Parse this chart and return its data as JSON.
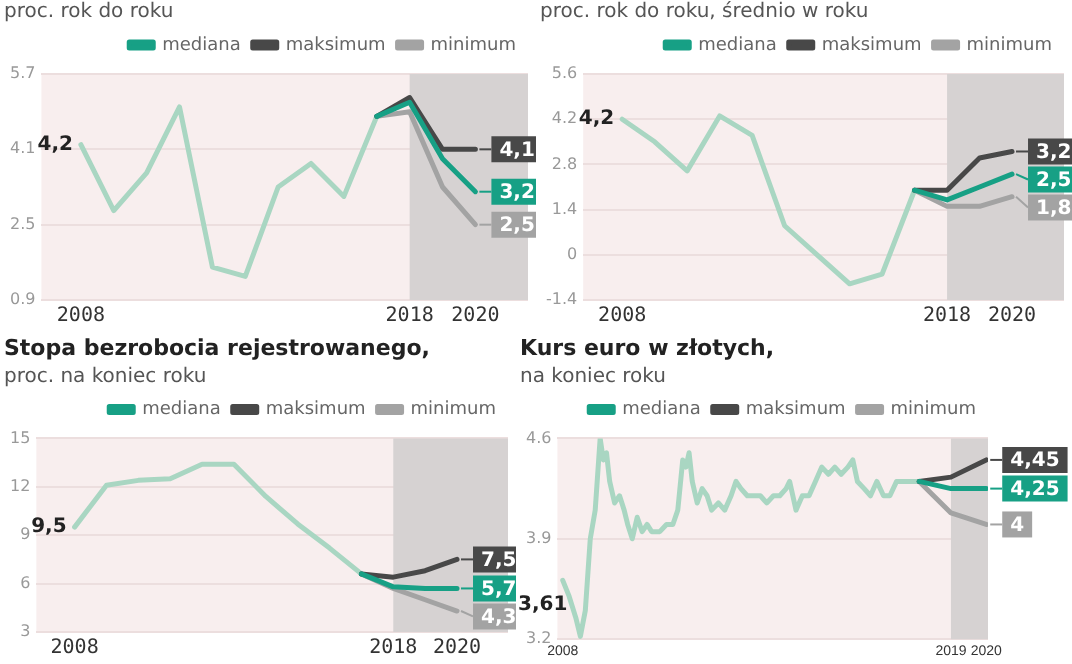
{
  "chart_data": [
    {
      "type": "line",
      "subtitle": "proc. rok do roku",
      "x": [
        2008,
        2009,
        2010,
        2011,
        2012,
        2013,
        2014,
        2015,
        2016,
        2017
      ],
      "xlim": [
        2006.8,
        2021.6
      ],
      "xticks": [
        2008,
        2018,
        2020
      ],
      "ylim": [
        0.9,
        5.7
      ],
      "yticks": [
        0.9,
        2.5,
        4.1,
        5.7
      ],
      "grid": "y",
      "legend": "top right",
      "bands": [
        {
          "axis": "x",
          "from": 2018,
          "to": 2021.6,
          "color": "#d6d2d2"
        }
      ],
      "series": [
        {
          "color": "#a9d6c2",
          "values": [
            4.2,
            2.8,
            3.6,
            5.0,
            1.6,
            1.4,
            3.3,
            3.8,
            3.1,
            4.8
          ],
          "value_labels": [
            "4,2",
            null,
            null,
            null,
            null,
            null,
            null,
            null,
            null,
            null
          ]
        },
        {
          "name": "mediana",
          "color": "#17a085",
          "x": [
            2017,
            2018,
            2019,
            2020
          ],
          "values": [
            4.8,
            5.1,
            3.9,
            3.2
          ],
          "value_labels": [
            null,
            null,
            null,
            "3,2"
          ]
        },
        {
          "name": "maksimum",
          "color": "#484848",
          "x": [
            2017,
            2018,
            2019,
            2020
          ],
          "values": [
            4.8,
            5.2,
            4.1,
            4.1
          ],
          "value_labels": [
            null,
            null,
            null,
            "4,1"
          ]
        },
        {
          "name": "minimum",
          "color": "#a3a3a3",
          "x": [
            2017,
            2018,
            2019,
            2020
          ],
          "values": [
            4.8,
            4.9,
            3.3,
            2.5
          ],
          "value_labels": [
            null,
            null,
            null,
            "2,5"
          ]
        }
      ]
    },
    {
      "type": "line",
      "subtitle": "proc. rok do roku, średnio w roku",
      "x": [
        2008,
        2009,
        2010,
        2011,
        2012,
        2013,
        2014,
        2015,
        2016,
        2017
      ],
      "xlim": [
        2006.8,
        2021.6
      ],
      "xticks": [
        2008,
        2018,
        2020
      ],
      "ylim": [
        -1.4,
        5.6
      ],
      "yticks": [
        -1.4,
        0,
        1.4,
        2.8,
        4.2,
        5.6
      ],
      "grid": "y",
      "legend": "top right",
      "bands": [
        {
          "axis": "x",
          "from": 2018,
          "to": 2021.6,
          "color": "#d6d2d2"
        }
      ],
      "series": [
        {
          "color": "#a9d6c2",
          "values": [
            4.2,
            3.5,
            2.6,
            4.3,
            3.7,
            0.9,
            0.0,
            -0.9,
            -0.6,
            2.0
          ],
          "value_labels": [
            "4,2",
            null,
            null,
            null,
            null,
            null,
            null,
            null,
            null,
            null
          ]
        },
        {
          "name": "mediana",
          "color": "#17a085",
          "x": [
            2017,
            2018,
            2019,
            2020
          ],
          "values": [
            2.0,
            1.7,
            2.1,
            2.5
          ],
          "value_labels": [
            null,
            null,
            null,
            "2,5"
          ]
        },
        {
          "name": "maksimum",
          "color": "#484848",
          "x": [
            2017,
            2018,
            2019,
            2020
          ],
          "values": [
            2.0,
            2.0,
            3.0,
            3.2
          ],
          "value_labels": [
            null,
            null,
            null,
            "3,2"
          ]
        },
        {
          "name": "minimum",
          "color": "#a3a3a3",
          "x": [
            2017,
            2018,
            2019,
            2020
          ],
          "values": [
            2.0,
            1.5,
            1.5,
            1.8
          ],
          "value_labels": [
            null,
            null,
            null,
            "1,8"
          ]
        }
      ]
    },
    {
      "type": "line",
      "title": "Stopa bezrobocia rejestrowanego,",
      "subtitle": "proc. na koniec roku",
      "x": [
        2008,
        2009,
        2010,
        2011,
        2012,
        2013,
        2014,
        2015,
        2016,
        2017
      ],
      "xlim": [
        2006.8,
        2021.6
      ],
      "xticks": [
        2008,
        2018,
        2020
      ],
      "ylim": [
        3,
        15
      ],
      "yticks": [
        3,
        6,
        9,
        12,
        15
      ],
      "grid": "y",
      "legend": "top right",
      "bands": [
        {
          "axis": "x",
          "from": 2018,
          "to": 2021.6,
          "color": "#d6d2d2"
        }
      ],
      "series": [
        {
          "color": "#a9d6c2",
          "values": [
            9.5,
            12.1,
            12.4,
            12.5,
            13.4,
            13.4,
            11.4,
            9.7,
            8.2,
            6.6
          ],
          "value_labels": [
            "9,5",
            null,
            null,
            null,
            null,
            null,
            null,
            null,
            null,
            null
          ]
        },
        {
          "name": "mediana",
          "color": "#17a085",
          "x": [
            2017,
            2018,
            2019,
            2020
          ],
          "values": [
            6.6,
            5.8,
            5.7,
            5.7
          ],
          "value_labels": [
            null,
            null,
            null,
            "5,7"
          ]
        },
        {
          "name": "maksimum",
          "color": "#484848",
          "x": [
            2017,
            2018,
            2019,
            2020
          ],
          "values": [
            6.6,
            6.4,
            6.8,
            7.5
          ],
          "value_labels": [
            null,
            null,
            null,
            "7,5"
          ]
        },
        {
          "name": "minimum",
          "color": "#a3a3a3",
          "x": [
            2017,
            2018,
            2019,
            2020
          ],
          "values": [
            6.6,
            5.7,
            5.0,
            4.3
          ],
          "value_labels": [
            null,
            null,
            null,
            "4,3"
          ]
        }
      ]
    },
    {
      "type": "line",
      "title": "Kurs euro w złotych,",
      "subtitle": "na koniec roku",
      "x": [
        2008.0,
        2008.18,
        2008.37,
        2008.5,
        2008.64,
        2008.78,
        2008.92,
        2009.06,
        2009.15,
        2009.24,
        2009.33,
        2009.47,
        2009.61,
        2009.74,
        2009.84,
        2009.97,
        2010.11,
        2010.25,
        2010.39,
        2010.52,
        2010.66,
        2010.75,
        2010.94,
        2011.12,
        2011.26,
        2011.4,
        2011.49,
        2011.58,
        2011.67,
        2011.81,
        2011.95,
        2012.09,
        2012.22,
        2012.41,
        2012.59,
        2012.77,
        2012.91,
        2013.05,
        2013.23,
        2013.42,
        2013.6,
        2013.78,
        2013.97,
        2014.15,
        2014.33,
        2014.43,
        2014.61,
        2014.79,
        2014.98,
        2015.16,
        2015.34,
        2015.53,
        2015.71,
        2015.89,
        2016.08,
        2016.22,
        2016.35,
        2016.54,
        2016.72,
        2016.9,
        2017.09,
        2017.27,
        2017.46,
        2017.64,
        2017.82,
        2017.96,
        2018.1
      ],
      "xlim": [
        2007.85,
        2020.05
      ],
      "xticks": [
        2008,
        2019,
        2020
      ],
      "ylim": [
        3.2,
        4.6
      ],
      "yticks": [
        3.2,
        3.9,
        4.6
      ],
      "grid": "y",
      "legend": "top right",
      "bands": [
        {
          "axis": "x",
          "from": 2019,
          "to": 2020.05,
          "color": "#d6d2d2"
        }
      ],
      "series": [
        {
          "color": "#a9d6c2",
          "values": [
            3.61,
            3.5,
            3.35,
            3.22,
            3.4,
            3.9,
            4.1,
            4.6,
            4.45,
            4.5,
            4.3,
            4.15,
            4.2,
            4.1,
            4.0,
            3.9,
            4.05,
            3.95,
            4.0,
            3.95,
            3.95,
            3.95,
            4.0,
            4.0,
            4.1,
            4.45,
            4.4,
            4.5,
            4.3,
            4.15,
            4.25,
            4.2,
            4.1,
            4.15,
            4.1,
            4.2,
            4.3,
            4.25,
            4.2,
            4.2,
            4.2,
            4.15,
            4.2,
            4.2,
            4.25,
            4.3,
            4.1,
            4.2,
            4.2,
            4.3,
            4.4,
            4.35,
            4.4,
            4.35,
            4.4,
            4.45,
            4.3,
            4.25,
            4.2,
            4.3,
            4.2,
            4.2,
            4.3,
            4.3,
            4.3,
            4.3,
            4.3
          ],
          "value_labels": [
            "3,61",
            null,
            null,
            null,
            null,
            null,
            null,
            null,
            null,
            null,
            null,
            null,
            null,
            null,
            null,
            null,
            null,
            null,
            null,
            null,
            null,
            null,
            null,
            null,
            null,
            null,
            null,
            null,
            null,
            null,
            null,
            null,
            null,
            null,
            null,
            null,
            null,
            null,
            null,
            null,
            null,
            null,
            null,
            null,
            null,
            null,
            null,
            null,
            null,
            null,
            null,
            null,
            null,
            null,
            null,
            null,
            null,
            null,
            null,
            null,
            null,
            null,
            null,
            null,
            null,
            null,
            null
          ]
        },
        {
          "name": "mediana",
          "color": "#17a085",
          "x": [
            2018.1,
            2019,
            2020
          ],
          "values": [
            4.3,
            4.25,
            4.25
          ],
          "value_labels": [
            null,
            null,
            "4,25"
          ]
        },
        {
          "name": "maksimum",
          "color": "#484848",
          "x": [
            2018.1,
            2019,
            2020
          ],
          "values": [
            4.3,
            4.33,
            4.45
          ],
          "value_labels": [
            null,
            null,
            "4,45"
          ]
        },
        {
          "name": "minimum",
          "color": "#a3a3a3",
          "x": [
            2018.1,
            2019,
            2020
          ],
          "values": [
            4.3,
            4.08,
            4.0
          ],
          "value_labels": [
            null,
            null,
            "4"
          ]
        }
      ]
    }
  ]
}
